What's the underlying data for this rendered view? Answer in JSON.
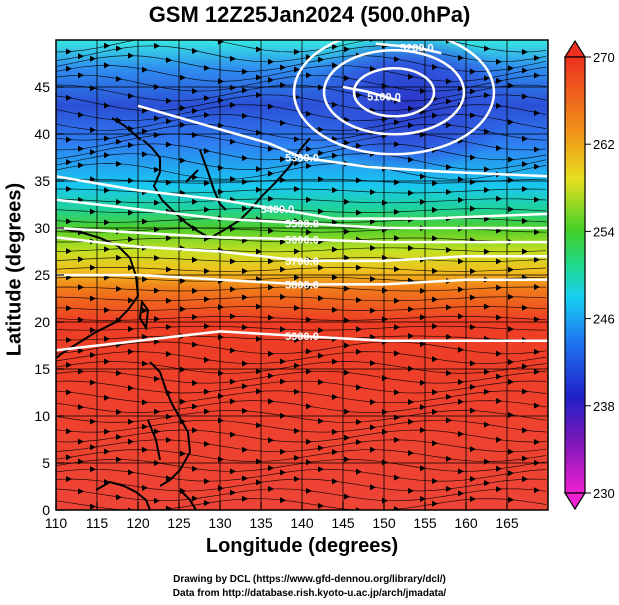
{
  "title": "GSM 12Z25Jan2024 (500.0hPa)",
  "xlabel": "Longitude (degrees)",
  "ylabel": "Latitude  (degrees)",
  "credit_line1": "Drawing by DCL (https://www.gfd-dennou.org/library/dcl/)",
  "credit_line2": "Data from http://database.rish.kyoto-u.ac.jp/arch/jmadata/",
  "x_ticks": [
    "110",
    "115",
    "120",
    "125",
    "130",
    "135",
    "140",
    "145",
    "150",
    "155",
    "160",
    "165"
  ],
  "y_ticks": [
    "0",
    "5",
    "10",
    "15",
    "20",
    "25",
    "30",
    "35",
    "40",
    "45"
  ],
  "colorbar_ticks": [
    "230",
    "238",
    "246",
    "254",
    "262",
    "270"
  ],
  "contour_labels": [
    "5200.0",
    "5100.0",
    "5300.0",
    "5400.0",
    "5500.0",
    "5600.0",
    "5700.0",
    "5800.0",
    "5900.0"
  ],
  "chart_data": {
    "type": "heatmap",
    "xlim": [
      110,
      170
    ],
    "ylim": [
      0,
      50
    ],
    "x_ticks": [
      110,
      115,
      120,
      125,
      130,
      135,
      140,
      145,
      150,
      155,
      160,
      165
    ],
    "y_ticks": [
      0,
      5,
      10,
      15,
      20,
      25,
      30,
      35,
      40,
      45
    ],
    "colorbar": {
      "min": 230,
      "max": 270,
      "ticks": [
        230,
        238,
        246,
        254,
        262,
        270
      ]
    },
    "contours": [
      {
        "label": "5200.0",
        "points": [
          [
            149,
            49.6
          ],
          [
            154,
            49.2
          ],
          [
            157,
            48.6
          ]
        ]
      },
      {
        "label": "5100.0",
        "points": [
          [
            145,
            45
          ],
          [
            148,
            44.5
          ],
          [
            150,
            44
          ],
          [
            152,
            43.5
          ]
        ]
      },
      {
        "label": "5300.0",
        "points": [
          [
            120,
            43
          ],
          [
            128,
            41
          ],
          [
            136,
            39
          ],
          [
            140,
            37.5
          ],
          [
            148,
            36.5
          ],
          [
            157,
            36
          ],
          [
            170,
            35.5
          ]
        ]
      },
      {
        "label": "5400.0",
        "points": [
          [
            110,
            35.5
          ],
          [
            120,
            34
          ],
          [
            130,
            33
          ],
          [
            137,
            32
          ],
          [
            144,
            31
          ],
          [
            155,
            31
          ],
          [
            170,
            31.5
          ]
        ]
      },
      {
        "label": "5500.0",
        "points": [
          [
            110,
            33
          ],
          [
            120,
            32
          ],
          [
            130,
            31
          ],
          [
            140,
            30.5
          ],
          [
            150,
            30
          ],
          [
            160,
            30
          ],
          [
            170,
            30
          ]
        ]
      },
      {
        "label": "5600.0",
        "points": [
          [
            110,
            30
          ],
          [
            120,
            29.5
          ],
          [
            130,
            29
          ],
          [
            140,
            28.8
          ],
          [
            150,
            28.5
          ],
          [
            160,
            28.5
          ],
          [
            170,
            28.5
          ]
        ]
      },
      {
        "label": "5700.0",
        "points": [
          [
            110,
            29
          ],
          [
            120,
            28
          ],
          [
            130,
            27.5
          ],
          [
            140,
            26.5
          ],
          [
            150,
            26.5
          ],
          [
            160,
            27
          ],
          [
            170,
            27
          ]
        ]
      },
      {
        "label": "5800.0",
        "points": [
          [
            110,
            25
          ],
          [
            120,
            25
          ],
          [
            130,
            24.5
          ],
          [
            140,
            24
          ],
          [
            150,
            24
          ],
          [
            160,
            24.5
          ],
          [
            170,
            24.5
          ]
        ]
      },
      {
        "label": "5900.0",
        "points": [
          [
            110,
            17
          ],
          [
            120,
            18
          ],
          [
            130,
            19
          ],
          [
            140,
            18.5
          ],
          [
            150,
            18
          ],
          [
            160,
            18
          ],
          [
            170,
            18
          ]
        ]
      }
    ]
  }
}
